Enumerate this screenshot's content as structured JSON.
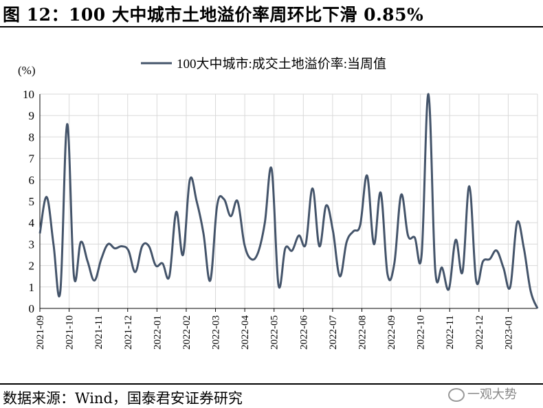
{
  "title": "图 12：100 大中城市土地溢价率周环比下滑 0.85%",
  "source": "数据来源：Wind，国泰君安证券研究",
  "watermark": "一观大势",
  "chart_data": {
    "type": "line",
    "title": "",
    "ylabel": "(%)",
    "xlabel": "",
    "ylim": [
      0,
      10
    ],
    "yticks": [
      0,
      1,
      2,
      3,
      4,
      5,
      6,
      7,
      8,
      9,
      10
    ],
    "grid": true,
    "legend_position": "top-center",
    "line_color": "#44546a",
    "x_tick_labels": [
      "2021-09",
      "2021-10",
      "2021-11",
      "2021-12",
      "2022-01",
      "2022-02",
      "2022-03",
      "2022-04",
      "2022-05",
      "2022-06",
      "2022-07",
      "2022-08",
      "2022-09",
      "2022-10",
      "2022-11",
      "2022-12",
      "2023-01"
    ],
    "series": [
      {
        "name": "100大中城市:成交土地溢价率:当周值",
        "values": [
          3.5,
          5.2,
          3.0,
          0.8,
          8.6,
          1.5,
          3.1,
          2.2,
          1.3,
          2.3,
          3.0,
          2.8,
          2.9,
          2.7,
          1.7,
          2.9,
          2.9,
          2.0,
          2.1,
          1.5,
          4.5,
          2.5,
          6.0,
          5.0,
          3.5,
          1.3,
          4.8,
          5.1,
          4.3,
          5.0,
          3.0,
          2.3,
          2.6,
          4.0,
          6.5,
          1.1,
          2.8,
          2.7,
          3.4,
          3.0,
          5.6,
          2.9,
          4.8,
          3.6,
          1.5,
          3.1,
          3.6,
          3.9,
          6.2,
          3.0,
          5.4,
          1.6,
          2.1,
          5.3,
          3.4,
          3.3,
          2.5,
          10.0,
          1.8,
          1.9,
          0.9,
          3.2,
          1.7,
          5.7,
          1.3,
          2.2,
          2.3,
          2.7,
          1.9,
          1.0,
          4.0,
          2.8,
          0.8,
          0.0
        ]
      }
    ]
  }
}
